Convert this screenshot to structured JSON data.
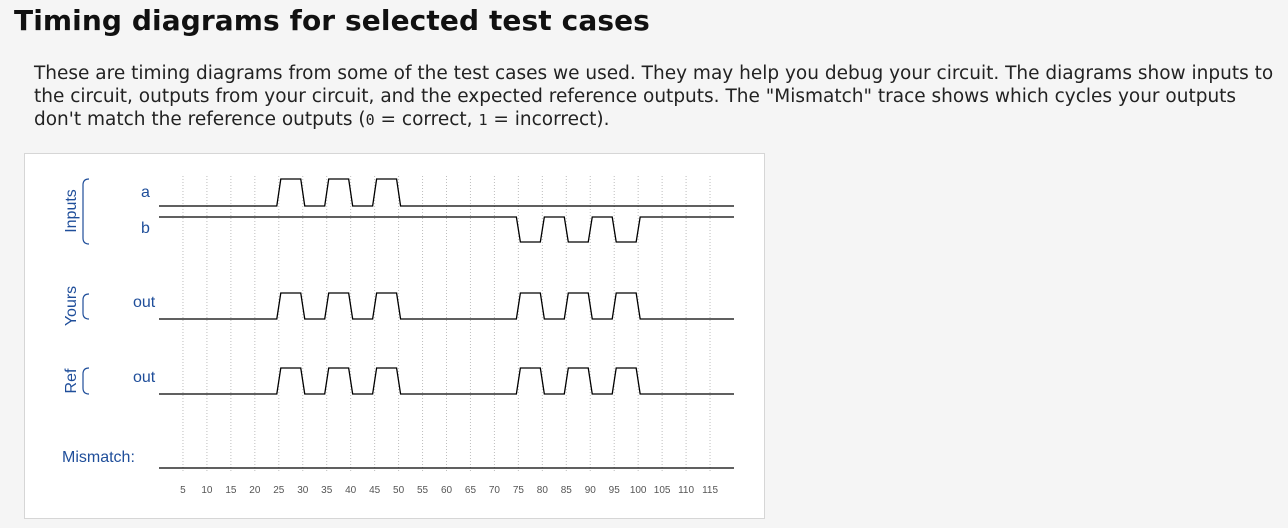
{
  "page": {
    "title": "Timing diagrams for selected test cases",
    "desc_part1": "These are timing diagrams from some of the test cases we used. They may help you debug your circuit. The diagrams show inputs to the circuit, outputs from your circuit, and the expected reference outputs. The \"Mismatch\" trace shows which cycles your outputs don't match the reference outputs (",
    "code_correct": "0",
    "desc_part2": " = correct, ",
    "code_incorrect": "1",
    "desc_part3": " = incorrect)."
  },
  "colors": {
    "label": "#1f4e9a",
    "wave": "#000000",
    "grid": "#bdbdbd"
  },
  "chart_data": {
    "type": "timing",
    "groups": [
      {
        "name": "Inputs",
        "signals": [
          "a",
          "b"
        ]
      },
      {
        "name": "Yours",
        "signals": [
          "out"
        ]
      },
      {
        "name": "Ref",
        "signals": [
          "out"
        ]
      }
    ],
    "mismatch_label": "Mismatch:",
    "time_ticks": [
      5,
      10,
      15,
      20,
      25,
      30,
      35,
      40,
      45,
      50,
      55,
      60,
      65,
      70,
      75,
      80,
      85,
      90,
      95,
      100,
      105,
      110,
      115
    ],
    "time_range": [
      0,
      120
    ],
    "signals": [
      {
        "name": "a",
        "group": "Inputs",
        "values": [
          0,
          0,
          0,
          0,
          0,
          1,
          0,
          1,
          0,
          1,
          0,
          0,
          0,
          0,
          0,
          0,
          0,
          0,
          0,
          0,
          0,
          0,
          0,
          0
        ]
      },
      {
        "name": "b",
        "group": "Inputs",
        "values": [
          1,
          1,
          1,
          1,
          1,
          1,
          1,
          1,
          1,
          1,
          1,
          1,
          1,
          1,
          1,
          0,
          1,
          0,
          1,
          0,
          1,
          1,
          1,
          1
        ]
      },
      {
        "name": "out",
        "group": "Yours",
        "values": [
          0,
          0,
          0,
          0,
          0,
          1,
          0,
          1,
          0,
          1,
          0,
          0,
          0,
          0,
          0,
          1,
          0,
          1,
          0,
          1,
          0,
          0,
          0,
          0
        ]
      },
      {
        "name": "out",
        "group": "Ref",
        "values": [
          0,
          0,
          0,
          0,
          0,
          1,
          0,
          1,
          0,
          1,
          0,
          0,
          0,
          0,
          0,
          1,
          0,
          1,
          0,
          1,
          0,
          0,
          0,
          0
        ]
      },
      {
        "name": "Mismatch",
        "group": "",
        "values": [
          0,
          0,
          0,
          0,
          0,
          0,
          0,
          0,
          0,
          0,
          0,
          0,
          0,
          0,
          0,
          0,
          0,
          0,
          0,
          0,
          0,
          0,
          0,
          0
        ]
      }
    ]
  }
}
